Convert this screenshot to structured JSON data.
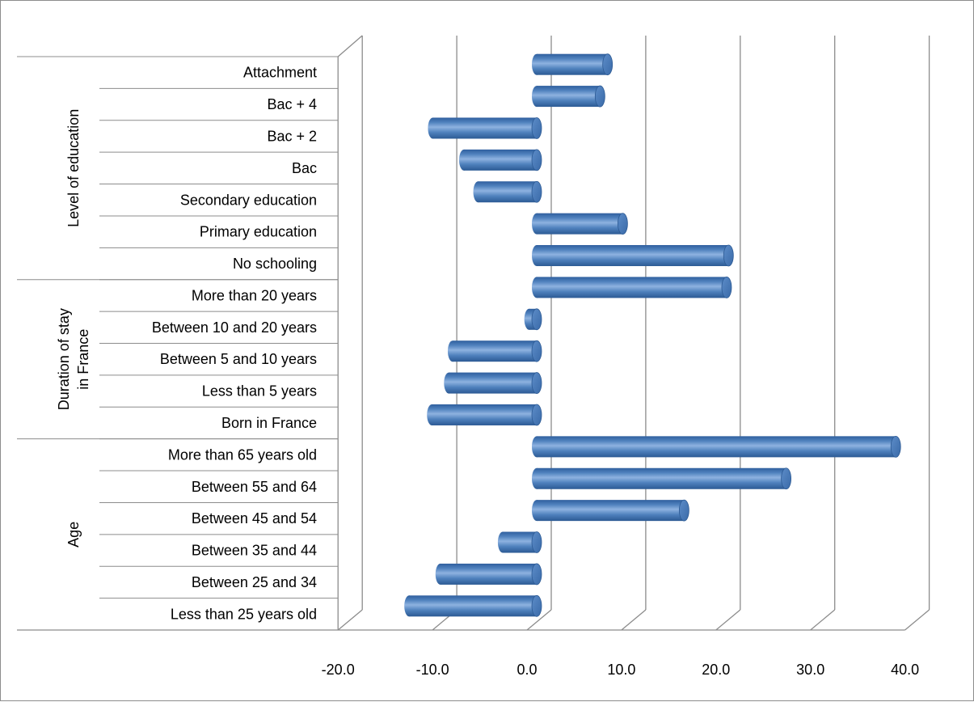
{
  "chart_data": {
    "type": "bar",
    "orientation": "horizontal",
    "style": "3d-cylinder",
    "groups": [
      {
        "label": "Level of education",
        "categories": [
          "Attachment",
          "Bac + 4",
          "Bac + 2",
          "Bac",
          "Secondary education",
          "Primary education",
          "No schooling"
        ]
      },
      {
        "label": "Duration of stay in France",
        "label_lines": [
          "Duration of stay",
          "in France"
        ],
        "categories": [
          "More than 20 years",
          "Between 10 and 20 years",
          "Between 5 and 10 years",
          "Less than 5 years",
          "Born in France"
        ]
      },
      {
        "label": "Age",
        "categories": [
          "More than 65 years old",
          "Between 55 and 64",
          "Between 45 and 54",
          "Between 35 and 44",
          "Between 25 and 34",
          "Less than 25 years old"
        ]
      }
    ],
    "categories": [
      "Attachment",
      "Bac + 4",
      "Bac + 2",
      "Bac",
      "Secondary education",
      "Primary education",
      "No schooling",
      "More than 20 years",
      "Between 10 and 20 years",
      "Between 5 and 10 years",
      "Less than 5 years",
      "Born in France",
      "More than 65 years old",
      "Between 55 and 64",
      "Between 45 and 54",
      "Between 35 and 44",
      "Between 25 and 34",
      "Less than 25 years old"
    ],
    "values": [
      7.5,
      6.7,
      -11.0,
      -7.7,
      -6.2,
      9.1,
      20.3,
      20.1,
      -0.8,
      -8.9,
      -9.3,
      -11.1,
      38.0,
      26.4,
      15.6,
      -3.6,
      -10.2,
      -13.5
    ],
    "x_ticks": [
      "-20.0",
      "-10.0",
      "0.0",
      "10.0",
      "20.0",
      "30.0",
      "40.0"
    ],
    "xlim": [
      -20,
      40
    ],
    "grid": true,
    "legend": "none",
    "bar_color": "#4f81bd"
  }
}
